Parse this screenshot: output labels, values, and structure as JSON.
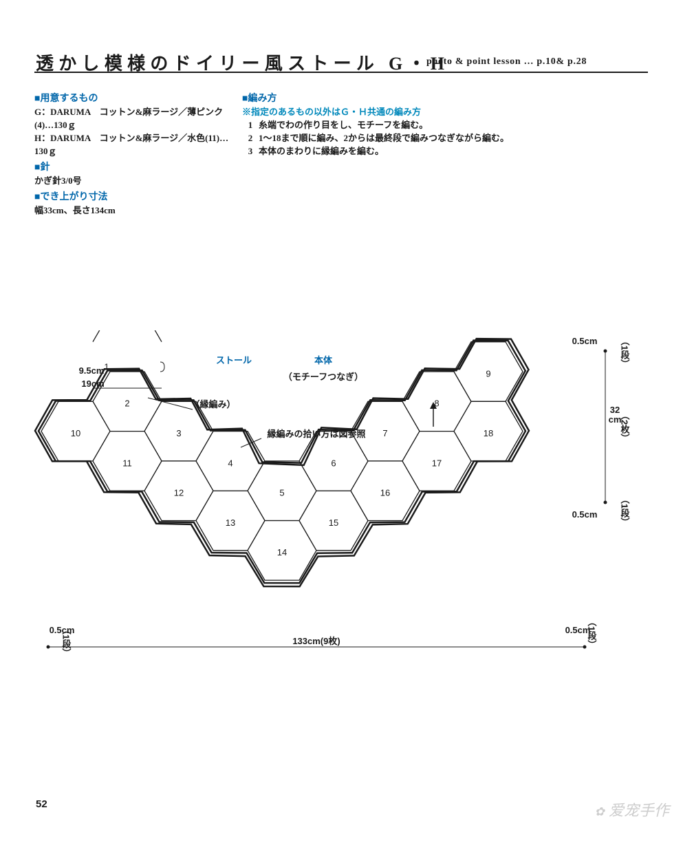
{
  "header": {
    "title": "透かし模様のドイリー風ストール G・H",
    "subtitle": "photo & point lesson … p.10& p.28"
  },
  "materials": {
    "heading": "■用意するもの",
    "line_g": "G：DARUMA　コットン&麻ラージ／薄ピンク(4)…130ｇ",
    "line_h": "H：DARUMA　コットン&麻ラージ／水色(11)…130ｇ",
    "needle_heading": "■針",
    "needle_text": "かぎ針3/0号",
    "size_heading": "■でき上がり寸法",
    "size_text": "幅33cm、長さ134cm"
  },
  "method": {
    "heading": "■編み方",
    "note": "※指定のあるもの以外はＧ・Ｈ共通の編み方",
    "steps": [
      "糸端でわの作り目をし、モチーフを編む。",
      "1〜18まで順に編み、2からは最終段で編みつなぎながら編む。",
      "本体のまわりに縁編みを編む。"
    ]
  },
  "diagram": {
    "type": "hex-layout",
    "hex_r": 50,
    "colors": {
      "stroke": "#1a1a1a",
      "outer_stroke": "#1a1a1a",
      "bg": "#ffffff",
      "blue": "#0066aa"
    },
    "labels": {
      "stole": "ストール",
      "body": "本体",
      "motif_join": "（モチーフつなぎ）",
      "edge": "（縁編み）",
      "edge_ref": "縁編みの拾い方は図参照",
      "half_hex": "9.5cm",
      "hex_width": "19cm",
      "hex_num_1": "1"
    },
    "dims": {
      "width_label": "133cm(9枚)",
      "height_label_cm": "32cm",
      "height_label_sheets": "（2枚）",
      "edge_label": "0.5cm",
      "edge_label_row": "（1段）"
    },
    "hexes": [
      {
        "n": 2,
        "col": 1,
        "row": 0.5
      },
      {
        "n": 10,
        "col": 0,
        "row": 1
      },
      {
        "n": 3,
        "col": 2,
        "row": 1
      },
      {
        "n": 11,
        "col": 1,
        "row": 1.5
      },
      {
        "n": 4,
        "col": 3,
        "row": 1.5
      },
      {
        "n": 12,
        "col": 2,
        "row": 2
      },
      {
        "n": 5,
        "col": 4,
        "row": 2
      },
      {
        "n": 13,
        "col": 3,
        "row": 2.5
      },
      {
        "n": 14,
        "col": 4,
        "row": 3
      },
      {
        "n": 6,
        "col": 5,
        "row": 1.5
      },
      {
        "n": 15,
        "col": 5,
        "row": 2.5
      },
      {
        "n": 7,
        "col": 6,
        "row": 1
      },
      {
        "n": 16,
        "col": 6,
        "row": 2
      },
      {
        "n": 8,
        "col": 7,
        "row": 0.5
      },
      {
        "n": 17,
        "col": 7,
        "row": 1.5
      },
      {
        "n": 9,
        "col": 8,
        "row": 0
      },
      {
        "n": 18,
        "col": 8,
        "row": 1
      }
    ]
  },
  "page_number": "52",
  "watermark": "爱宠手作"
}
